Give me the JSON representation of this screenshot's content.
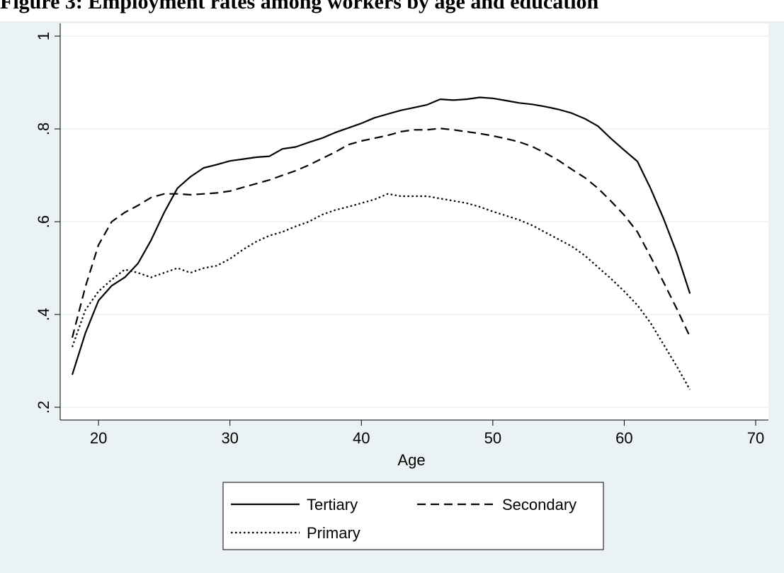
{
  "chart_data": {
    "type": "line",
    "title": "Figure 3: Employment rates among workers by age and education",
    "xlabel": "Age",
    "ylabel": "",
    "xlim": [
      18,
      70
    ],
    "ylim": [
      0.2,
      1.0
    ],
    "xticks": [
      20,
      30,
      40,
      50,
      60,
      70
    ],
    "xtick_labels": [
      "20",
      "30",
      "40",
      "50",
      "60",
      "70"
    ],
    "yticks": [
      0.2,
      0.4,
      0.6,
      0.8,
      1.0
    ],
    "ytick_labels": [
      ".2",
      ".4",
      ".6",
      ".8",
      "1"
    ],
    "grid": "horizontal",
    "legend_position": "bottom",
    "series": [
      {
        "name": "Tertiary",
        "style": "solid",
        "color": "#000000",
        "x": [
          18,
          19,
          20,
          21,
          22,
          23,
          24,
          25,
          26,
          27,
          28,
          29,
          30,
          31,
          32,
          33,
          34,
          35,
          36,
          37,
          38,
          39,
          40,
          41,
          42,
          43,
          44,
          45,
          46,
          47,
          48,
          49,
          50,
          51,
          52,
          53,
          54,
          55,
          56,
          57,
          58,
          59,
          60,
          61,
          62,
          63,
          64,
          65
        ],
        "y": [
          0.27,
          0.36,
          0.43,
          0.462,
          0.48,
          0.51,
          0.56,
          0.62,
          0.672,
          0.697,
          0.716,
          0.723,
          0.731,
          0.735,
          0.739,
          0.741,
          0.757,
          0.761,
          0.771,
          0.78,
          0.792,
          0.802,
          0.812,
          0.824,
          0.832,
          0.84,
          0.846,
          0.852,
          0.864,
          0.862,
          0.864,
          0.868,
          0.866,
          0.861,
          0.856,
          0.853,
          0.848,
          0.842,
          0.834,
          0.822,
          0.806,
          0.779,
          0.754,
          0.73,
          0.672,
          0.606,
          0.532,
          0.445
        ]
      },
      {
        "name": "Secondary",
        "style": "dashed",
        "color": "#000000",
        "x": [
          18,
          19,
          20,
          21,
          22,
          23,
          24,
          25,
          26,
          27,
          28,
          29,
          30,
          31,
          32,
          33,
          34,
          35,
          36,
          37,
          38,
          39,
          40,
          41,
          42,
          43,
          44,
          45,
          46,
          47,
          48,
          49,
          50,
          51,
          52,
          53,
          54,
          55,
          56,
          57,
          58,
          59,
          60,
          61,
          62,
          63,
          64,
          65
        ],
        "y": [
          0.35,
          0.46,
          0.55,
          0.6,
          0.62,
          0.635,
          0.652,
          0.66,
          0.66,
          0.658,
          0.66,
          0.662,
          0.666,
          0.674,
          0.682,
          0.69,
          0.7,
          0.71,
          0.722,
          0.736,
          0.75,
          0.766,
          0.774,
          0.78,
          0.786,
          0.794,
          0.798,
          0.798,
          0.801,
          0.798,
          0.794,
          0.79,
          0.785,
          0.779,
          0.772,
          0.762,
          0.748,
          0.732,
          0.713,
          0.695,
          0.672,
          0.644,
          0.614,
          0.578,
          0.525,
          0.469,
          0.412,
          0.352
        ]
      },
      {
        "name": "Primary",
        "style": "dotted",
        "color": "#000000",
        "x": [
          18,
          19,
          20,
          21,
          22,
          23,
          24,
          25,
          26,
          27,
          28,
          29,
          30,
          31,
          32,
          33,
          34,
          35,
          36,
          37,
          38,
          39,
          40,
          41,
          42,
          43,
          44,
          45,
          46,
          47,
          48,
          49,
          50,
          51,
          52,
          53,
          54,
          55,
          56,
          57,
          58,
          59,
          60,
          61,
          62,
          63,
          64,
          65
        ],
        "y": [
          0.33,
          0.41,
          0.45,
          0.475,
          0.497,
          0.49,
          0.48,
          0.49,
          0.5,
          0.49,
          0.5,
          0.505,
          0.52,
          0.54,
          0.557,
          0.57,
          0.578,
          0.59,
          0.6,
          0.615,
          0.625,
          0.632,
          0.64,
          0.648,
          0.66,
          0.655,
          0.655,
          0.655,
          0.65,
          0.645,
          0.64,
          0.632,
          0.622,
          0.613,
          0.604,
          0.592,
          0.577,
          0.562,
          0.547,
          0.527,
          0.502,
          0.477,
          0.45,
          0.42,
          0.382,
          0.335,
          0.288,
          0.238
        ]
      }
    ]
  }
}
